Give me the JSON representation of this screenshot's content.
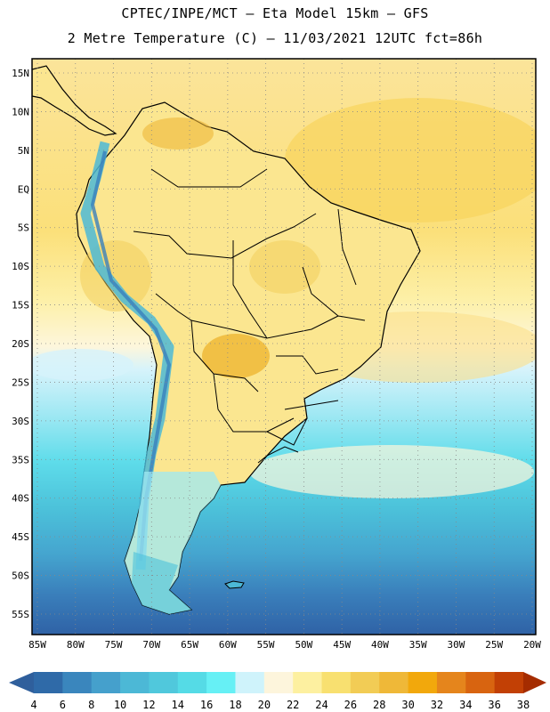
{
  "header": {
    "line1": "CPTEC/INPE/MCT –  Eta Model 15km – GFS",
    "line2": "2 Metre Temperature (C) – 11/03/2021 12UTC fct=86h"
  },
  "map": {
    "lon_range": [
      -86,
      -20
    ],
    "lat_range": [
      -58,
      17
    ],
    "lon_ticks": [
      "85W",
      "80W",
      "75W",
      "70W",
      "65W",
      "60W",
      "55W",
      "50W",
      "45W",
      "40W",
      "35W",
      "30W",
      "25W",
      "20W"
    ],
    "lat_ticks": [
      "15N",
      "10N",
      "5N",
      "EQ",
      "5S",
      "10S",
      "15S",
      "20S",
      "25S",
      "30S",
      "35S",
      "40S",
      "45S",
      "50S",
      "55S"
    ]
  },
  "colorbar": {
    "labels": [
      "4",
      "6",
      "8",
      "10",
      "12",
      "14",
      "16",
      "18",
      "20",
      "22",
      "24",
      "26",
      "28",
      "30",
      "32",
      "34",
      "36",
      "38"
    ],
    "colors": [
      "#2f6aa8",
      "#3a86bd",
      "#45a0cc",
      "#4cb8d6",
      "#50c8dc",
      "#55dbe6",
      "#66f0f5",
      "#cff3fb",
      "#fdf5dc",
      "#fdf0a0",
      "#f8e070",
      "#f2cc55",
      "#efb838",
      "#f2a80c",
      "#e5851c",
      "#d86410",
      "#c24005",
      "#a52c00"
    ]
  }
}
